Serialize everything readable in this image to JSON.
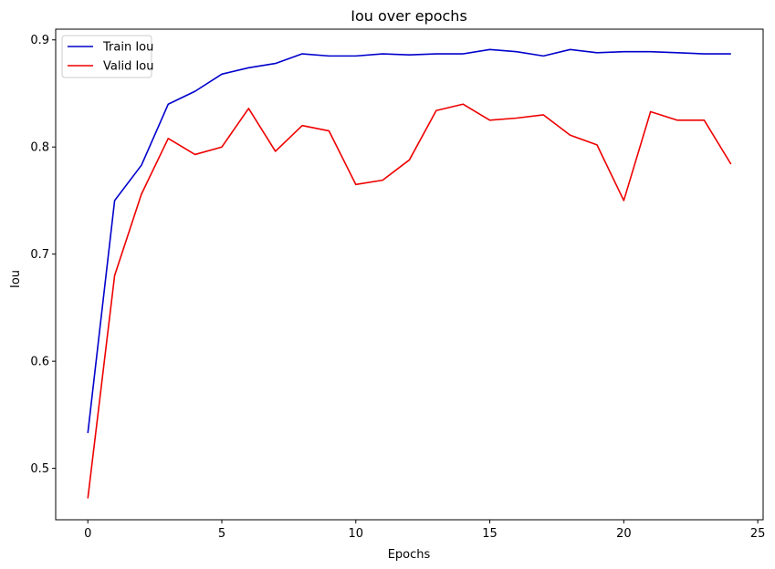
{
  "chart_data": {
    "type": "line",
    "title": "Iou over epochs",
    "xlabel": "Epochs",
    "ylabel": "Iou",
    "xlim": [
      -1.2,
      25.2
    ],
    "ylim": [
      0.452,
      0.91
    ],
    "xticks": [
      0,
      5,
      10,
      15,
      20,
      25
    ],
    "yticks": [
      0.5,
      0.6,
      0.7,
      0.8,
      0.9
    ],
    "ytick_labels": [
      "0.5",
      "0.6",
      "0.7",
      "0.8",
      "0.9"
    ],
    "grid": false,
    "legend_position": "top-left",
    "x": [
      0,
      1,
      2,
      3,
      4,
      5,
      6,
      7,
      8,
      9,
      10,
      11,
      12,
      13,
      14,
      15,
      16,
      17,
      18,
      19,
      20,
      21,
      22,
      23,
      24
    ],
    "series": [
      {
        "name": "Train Iou",
        "color": "#0000cc",
        "values": [
          0.533,
          0.75,
          0.783,
          0.84,
          0.852,
          0.868,
          0.874,
          0.878,
          0.887,
          0.885,
          0.885,
          0.887,
          0.886,
          0.887,
          0.887,
          0.891,
          0.889,
          0.885,
          0.891,
          0.888,
          0.889,
          0.889,
          0.888,
          0.887,
          0.887
        ]
      },
      {
        "name": "Valid Iou",
        "color": "#ee0000",
        "values": [
          0.472,
          0.68,
          0.756,
          0.808,
          0.793,
          0.8,
          0.836,
          0.796,
          0.82,
          0.815,
          0.765,
          0.769,
          0.788,
          0.834,
          0.84,
          0.825,
          0.827,
          0.83,
          0.811,
          0.802,
          0.75,
          0.833,
          0.825,
          0.825,
          0.784
        ]
      }
    ]
  }
}
